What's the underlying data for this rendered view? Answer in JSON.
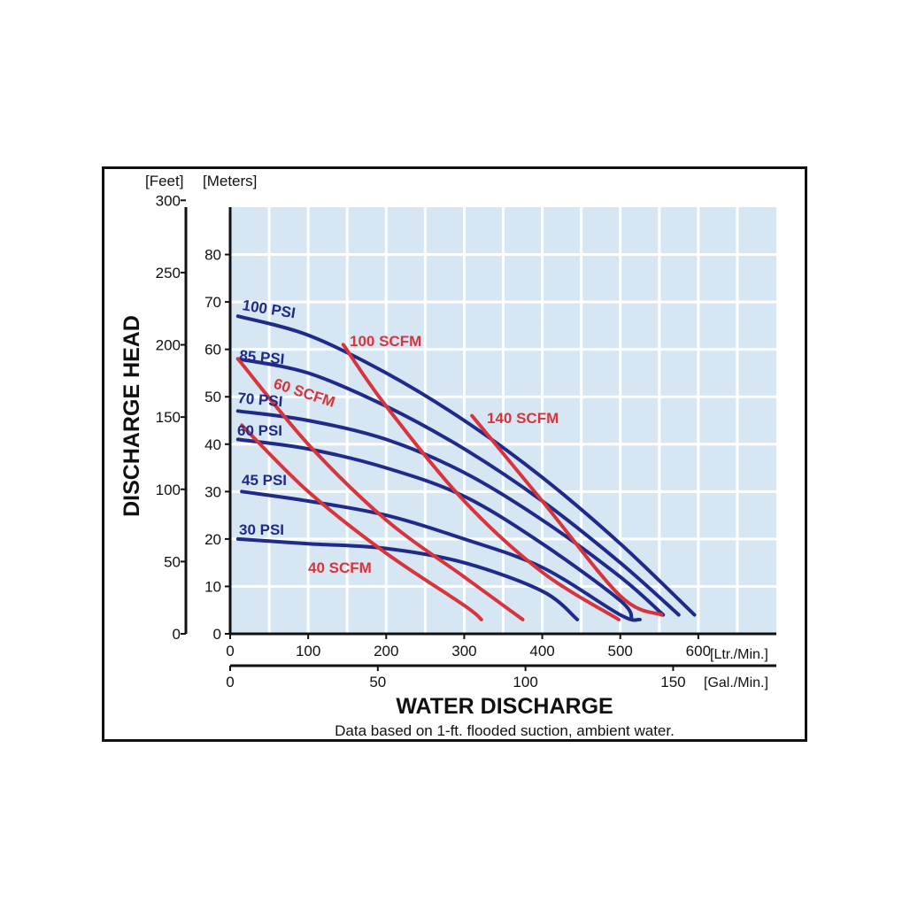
{
  "chart_data": {
    "type": "line",
    "xlabel": "WATER DISCHARGE",
    "ylabel": "DISCHARGE HEAD",
    "note": "Data based on 1-ft. flooded suction, ambient water.",
    "y_left_unit": "[Feet]",
    "y_right_unit": "[Meters]",
    "x_primary_unit": "[Ltr./Min.]",
    "x_secondary_unit": "[Gal./Min.]",
    "x_primary_range": [
      0,
      700
    ],
    "x_primary_ticks": [
      "0",
      "100",
      "200",
      "300",
      "400",
      "500",
      "600"
    ],
    "x_secondary_ticks": [
      "0",
      "50",
      "100",
      "150"
    ],
    "y_meters_range": [
      0,
      90
    ],
    "y_meters_ticks": [
      "0",
      "10",
      "20",
      "30",
      "40",
      "50",
      "60",
      "70",
      "80"
    ],
    "y_feet_ticks": [
      "0",
      "50",
      "100",
      "150",
      "200",
      "250",
      "300"
    ],
    "grid": true,
    "psi_series": [
      {
        "name": "100 PSI",
        "color": "#1f2a8a",
        "points": [
          [
            10,
            67
          ],
          [
            100,
            63
          ],
          [
            200,
            55
          ],
          [
            300,
            45
          ],
          [
            400,
            33
          ],
          [
            500,
            19
          ],
          [
            595,
            4
          ]
        ]
      },
      {
        "name": "85 PSI",
        "color": "#1f2a8a",
        "points": [
          [
            10,
            58
          ],
          [
            100,
            55
          ],
          [
            200,
            48
          ],
          [
            300,
            39
          ],
          [
            400,
            28
          ],
          [
            500,
            15
          ],
          [
            575,
            4
          ]
        ]
      },
      {
        "name": "70 PSI",
        "color": "#1f2a8a",
        "points": [
          [
            10,
            47
          ],
          [
            100,
            45
          ],
          [
            200,
            41
          ],
          [
            300,
            34
          ],
          [
            400,
            24
          ],
          [
            500,
            12
          ],
          [
            555,
            4
          ]
        ]
      },
      {
        "name": "60 PSI",
        "color": "#1f2a8a",
        "points": [
          [
            10,
            41
          ],
          [
            100,
            39
          ],
          [
            200,
            35
          ],
          [
            300,
            29
          ],
          [
            400,
            19
          ],
          [
            500,
            7
          ],
          [
            515,
            3
          ]
        ]
      },
      {
        "name": "45 PSI",
        "color": "#1f2a8a",
        "points": [
          [
            15,
            30
          ],
          [
            100,
            28
          ],
          [
            200,
            25
          ],
          [
            300,
            20
          ],
          [
            400,
            14
          ],
          [
            500,
            4
          ],
          [
            525,
            3
          ]
        ]
      },
      {
        "name": "30 PSI",
        "color": "#1f2a8a",
        "points": [
          [
            10,
            20
          ],
          [
            100,
            19
          ],
          [
            200,
            18
          ],
          [
            300,
            15
          ],
          [
            400,
            9
          ],
          [
            445,
            3
          ]
        ]
      }
    ],
    "scfm_series": [
      {
        "name": "140 SCFM",
        "color": "#d8343b",
        "points": [
          [
            310,
            46
          ],
          [
            400,
            28
          ],
          [
            500,
            8
          ],
          [
            553,
            4
          ]
        ]
      },
      {
        "name": "100 SCFM",
        "color": "#d8343b",
        "points": [
          [
            145,
            61
          ],
          [
            200,
            48
          ],
          [
            300,
            28
          ],
          [
            400,
            13
          ],
          [
            498,
            3
          ]
        ]
      },
      {
        "name": "60 SCFM",
        "color": "#d8343b",
        "points": [
          [
            10,
            58
          ],
          [
            100,
            40
          ],
          [
            200,
            24
          ],
          [
            300,
            12
          ],
          [
            375,
            3
          ]
        ]
      },
      {
        "name": "40 SCFM",
        "color": "#d8343b",
        "points": [
          [
            15,
            44
          ],
          [
            100,
            30
          ],
          [
            200,
            17
          ],
          [
            300,
            6
          ],
          [
            322,
            3
          ]
        ]
      }
    ]
  }
}
